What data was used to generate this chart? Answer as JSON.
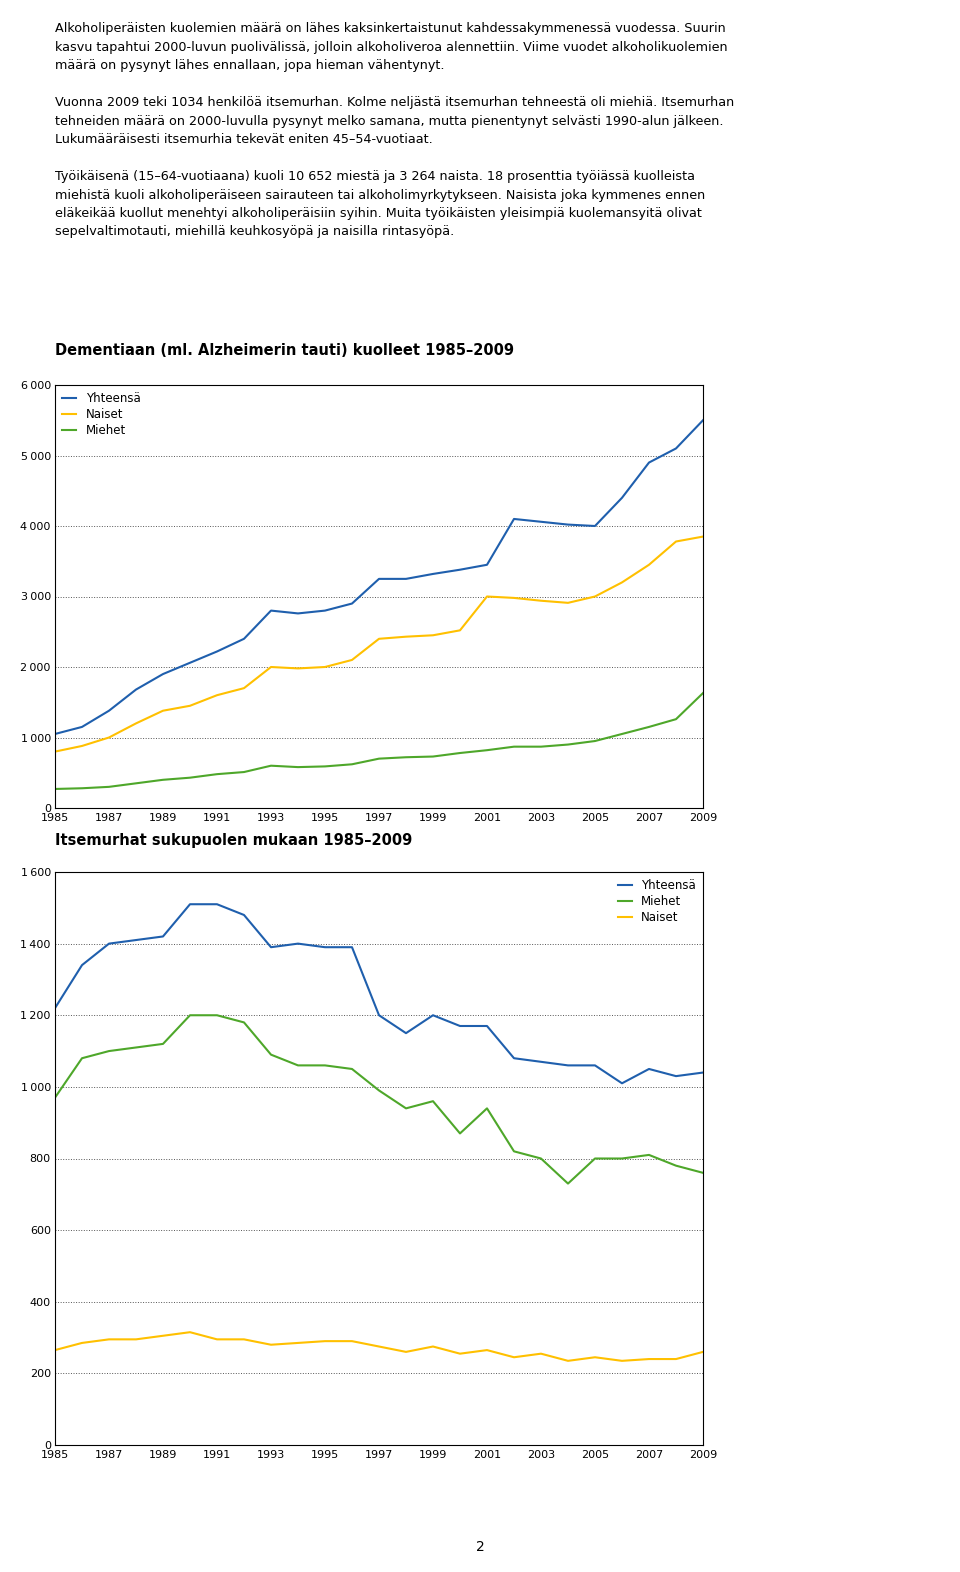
{
  "chart1_title": "Dementiaan (ml. Alzheimerin tauti) kuolleet 1985–2009",
  "chart2_title": "Itsemurhat sukupuolen mukaan 1985–2009",
  "years": [
    1985,
    1986,
    1987,
    1988,
    1989,
    1990,
    1991,
    1992,
    1993,
    1994,
    1995,
    1996,
    1997,
    1998,
    1999,
    2000,
    2001,
    2002,
    2003,
    2004,
    2005,
    2006,
    2007,
    2008,
    2009
  ],
  "chart1_yhteensa": [
    1050,
    1150,
    1380,
    1680,
    1900,
    2060,
    2220,
    2400,
    2800,
    2760,
    2800,
    2900,
    3250,
    3250,
    3320,
    3380,
    3450,
    4100,
    4060,
    4020,
    4000,
    4400,
    4900,
    5100,
    5500
  ],
  "chart1_naiset": [
    800,
    880,
    1000,
    1200,
    1380,
    1450,
    1600,
    1700,
    2000,
    1980,
    2000,
    2100,
    2400,
    2430,
    2450,
    2520,
    3000,
    2980,
    2940,
    2910,
    3000,
    3200,
    3450,
    3780,
    3850
  ],
  "chart1_miehet": [
    270,
    280,
    300,
    350,
    400,
    430,
    480,
    510,
    600,
    580,
    590,
    620,
    700,
    720,
    730,
    780,
    820,
    870,
    870,
    900,
    950,
    1050,
    1150,
    1260,
    1630
  ],
  "chart2_yhteensa": [
    1220,
    1340,
    1400,
    1410,
    1420,
    1510,
    1510,
    1480,
    1390,
    1400,
    1390,
    1390,
    1200,
    1150,
    1200,
    1170,
    1170,
    1080,
    1070,
    1060,
    1060,
    1010,
    1050,
    1030,
    1040
  ],
  "chart2_miehet": [
    970,
    1080,
    1100,
    1110,
    1120,
    1200,
    1200,
    1180,
    1090,
    1060,
    1060,
    1050,
    990,
    940,
    960,
    870,
    940,
    820,
    800,
    730,
    800,
    800,
    810,
    780,
    760
  ],
  "chart2_naiset": [
    265,
    285,
    295,
    295,
    305,
    315,
    295,
    295,
    280,
    285,
    290,
    290,
    275,
    260,
    275,
    255,
    265,
    245,
    255,
    235,
    245,
    235,
    240,
    240,
    260
  ],
  "color_blue": "#1F5FAD",
  "color_yellow": "#FFC000",
  "color_green": "#4EA72A",
  "chart1_ylim": [
    0,
    6000
  ],
  "chart1_yticks": [
    0,
    1000,
    2000,
    3000,
    4000,
    5000,
    6000
  ],
  "chart2_ylim": [
    0,
    1600
  ],
  "chart2_yticks": [
    0,
    200,
    400,
    600,
    800,
    1000,
    1200,
    1400,
    1600
  ],
  "xtick_labels": [
    "1985",
    "1987",
    "1989",
    "1991",
    "1993",
    "1995",
    "1997",
    "1999",
    "2001",
    "2003",
    "2005",
    "2007",
    "2009"
  ],
  "xtick_positions": [
    1985,
    1987,
    1989,
    1991,
    1993,
    1995,
    1997,
    1999,
    2001,
    2003,
    2005,
    2007,
    2009
  ],
  "text_lines": [
    "Alkoholiperäisten kuolemien määrä on lähes kaksinkertaistunut kahdessakymmenessä vuodessa. Suurin",
    "kasvu tapahtui 2000-luvun puolivälissä, jolloin alkoholiveroa alennettiin. Viime vuodet alkoholikuolemien",
    "määrä on pysynyt lähes ennallaan, jopa hieman vähentynyt.",
    "",
    "Vuonna 2009 teki 1034 henkilöä itsemurhan. Kolme neljästä itsemurhan tehneestä oli miehiä. Itsemurhan",
    "tehneiden määrä on 2000-luvulla pysynyt melko samana, mutta pienentynyt selvästi 1990-alun jälkeen.",
    "Lukumääräisesti itsemurhia tekevät eniten 45–54-vuotiaat.",
    "",
    "Työikäisenä (15–64-vuotiaana) kuoli 10 652 miestä ja 3 264 naista. 18 prosenttia työiässä kuolleista",
    "miehistä kuoli alkoholiperäiseen sairauteen tai alkoholimyrkytykseen. Naisista joka kymmenes ennen",
    "eläkeikää kuollut menehtyi alkoholiperäisiin syihin. Muita työikäisten yleisimpiä kuolemansyitä olivat",
    "sepelvaltimotauti, miehillä keuhkosyöpä ja naisilla rintasyöpä."
  ],
  "page_number": "2"
}
